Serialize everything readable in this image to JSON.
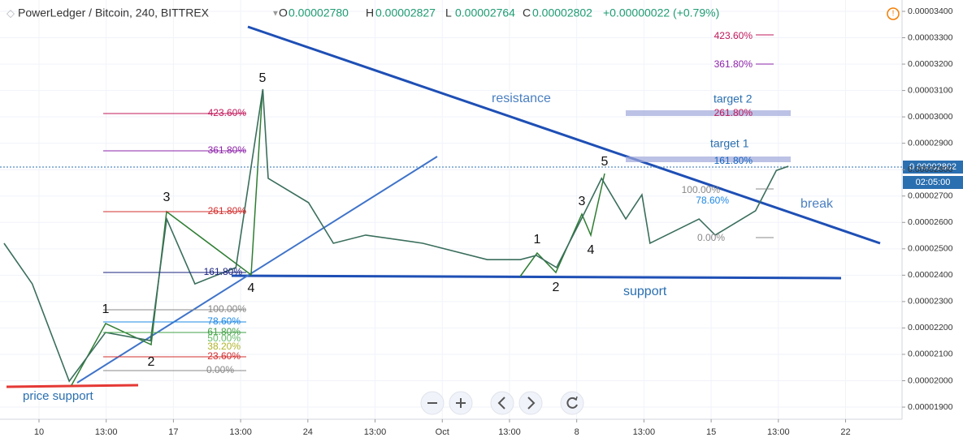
{
  "header": {
    "symbol": "PowerLedger / Bitcoin, 240, BITTREX",
    "ohlc": [
      {
        "label": "O",
        "value": "0.00002780"
      },
      {
        "label": "H",
        "value": "0.00002827"
      },
      {
        "label": "L",
        "value": "0.00002764"
      },
      {
        "label": "C",
        "value": "0.00002802"
      }
    ],
    "change": "+0.00000022 (+0.79%)"
  },
  "price_tag": {
    "price": "0.00002802",
    "countdown": "02:05:00"
  },
  "annotations": [
    "resistance",
    "support",
    "break",
    "price support",
    "target 1",
    "target 2",
    "1",
    "2",
    "3",
    "4",
    "5",
    "1",
    "2",
    "3",
    "4",
    "5",
    "423.60%",
    "361.80%",
    "261.80%",
    "161.80%",
    "100.00%",
    "78.60%",
    "61.80%",
    "50.00%",
    "38.20%",
    "23.60%",
    "0.00%",
    "423.60%",
    "361.80%",
    "261.80%",
    "161.80%",
    "100.00%",
    "78.60%",
    "0.00%"
  ],
  "chart_data": {
    "type": "line",
    "xlim": [
      -0.58,
      12.84
    ],
    "xticks": [
      {
        "value": 0,
        "label": "10"
      },
      {
        "value": 1,
        "label": "13:00"
      },
      {
        "value": 2,
        "label": "17"
      },
      {
        "value": 3,
        "label": "13:00"
      },
      {
        "value": 4,
        "label": "24"
      },
      {
        "value": 5,
        "label": "13:00"
      },
      {
        "value": 6,
        "label": "Oct"
      },
      {
        "value": 7,
        "label": "13:00"
      },
      {
        "value": 8,
        "label": "8"
      },
      {
        "value": 9,
        "label": "13:00"
      },
      {
        "value": 10,
        "label": "15"
      },
      {
        "value": 11,
        "label": "13:00"
      },
      {
        "value": 12,
        "label": "22"
      }
    ],
    "ylim": [
      1.854e-05,
      3.443e-05
    ],
    "yticks": [
      {
        "value": 1.9e-05,
        "label": "0.00001900"
      },
      {
        "value": 2e-05,
        "label": "0.00002000"
      },
      {
        "value": 2.1e-05,
        "label": "0.00002100"
      },
      {
        "value": 2.2e-05,
        "label": "0.00002200"
      },
      {
        "value": 2.3e-05,
        "label": "0.00002300"
      },
      {
        "value": 2.4e-05,
        "label": "0.00002400"
      },
      {
        "value": 2.5e-05,
        "label": "0.00002500"
      },
      {
        "value": 2.6e-05,
        "label": "0.00002600"
      },
      {
        "value": 2.7e-05,
        "label": "0.00002700"
      },
      {
        "value": 2.8e-05,
        "label": "0.00002800"
      },
      {
        "value": 2.9e-05,
        "label": "0.00002900"
      },
      {
        "value": 3e-05,
        "label": "0.00003000"
      },
      {
        "value": 3.1e-05,
        "label": "0.00003100"
      },
      {
        "value": 3.2e-05,
        "label": "0.00003200"
      },
      {
        "value": 3.3e-05,
        "label": "0.00003300"
      },
      {
        "value": 3.4e-05,
        "label": "0.00003400"
      }
    ],
    "grid": true,
    "series": [
      {
        "color": "#3a6e5c",
        "x": [
          -0.52,
          -0.1,
          0.45,
          0.99,
          1.66,
          1.9,
          2.32,
          2.93,
          3.33,
          3.41,
          4.01,
          4.38,
          4.86,
          5.71,
          6.67,
          7.16,
          7.4,
          7.7,
          8.07,
          8.37,
          8.73,
          8.97,
          9.09,
          9.82,
          10.06,
          10.66,
          10.97,
          11.15
        ],
        "values": [
          2.521e-05,
          2.367e-05,
          1.998e-05,
          2.183e-05,
          2.152e-05,
          2.613e-05,
          2.367e-05,
          2.429e-05,
          3.105e-05,
          2.767e-05,
          2.675e-05,
          2.521e-05,
          2.552e-05,
          2.521e-05,
          2.459e-05,
          2.459e-05,
          2.475e-05,
          2.429e-05,
          2.613e-05,
          2.767e-05,
          2.613e-05,
          2.705e-05,
          2.521e-05,
          2.613e-05,
          2.552e-05,
          2.644e-05,
          2.797e-05,
          2.813e-05
        ]
      }
    ]
  }
}
